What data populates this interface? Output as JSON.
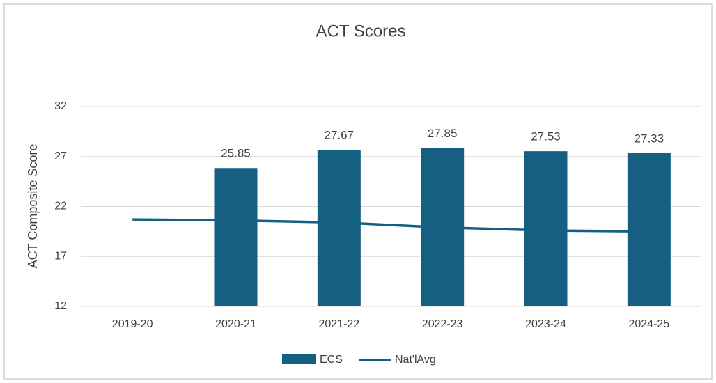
{
  "chart_data": {
    "type": "bar_line",
    "title": "ACT Scores",
    "y_axis_label": "ACT Composite Score",
    "categories": [
      "2019-20",
      "2020-21",
      "2021-22",
      "2022-23",
      "2023-24",
      "2024-25"
    ],
    "series": [
      {
        "name": "ECS",
        "type": "bar",
        "color": "#155f82",
        "values": [
          null,
          25.85,
          27.67,
          27.85,
          27.53,
          27.33
        ]
      },
      {
        "name": "Nat'lAvg",
        "type": "line",
        "color": "#155f82",
        "values": [
          20.7,
          20.6,
          20.4,
          19.9,
          19.6,
          19.5
        ]
      }
    ],
    "ylim": [
      12,
      32
    ],
    "yticks": [
      12,
      17,
      22,
      27,
      32
    ],
    "grid": true,
    "legend": "bottom"
  }
}
